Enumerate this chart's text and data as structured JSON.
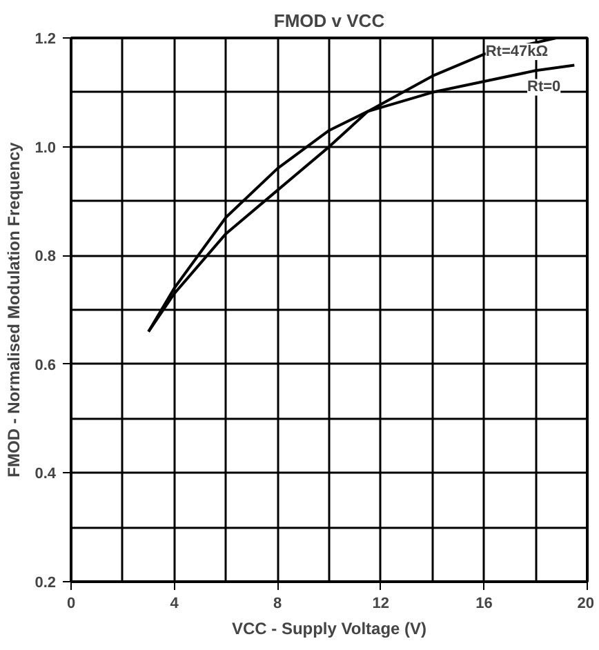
{
  "chart_data": {
    "type": "line",
    "title": "FMOD v VCC",
    "xlabel": "VCC - Supply Voltage (V)",
    "ylabel": "FMOD - Normalised Modulation Frequency",
    "series": [
      {
        "name": "Rt=47kΩ",
        "color": "#000000",
        "x": [
          3,
          4,
          6,
          8,
          10,
          11.5,
          14,
          16,
          18.8
        ],
        "values": [
          0.66,
          0.73,
          0.84,
          0.92,
          1.0,
          1.065,
          1.13,
          1.17,
          1.2
        ]
      },
      {
        "name": "Rt=0",
        "color": "#000000",
        "x": [
          3,
          4,
          6,
          8,
          10,
          11.5,
          14,
          16,
          18,
          19.5
        ],
        "values": [
          0.66,
          0.74,
          0.87,
          0.96,
          1.03,
          1.065,
          1.1,
          1.12,
          1.14,
          1.15
        ]
      }
    ],
    "xlim": [
      0,
      20
    ],
    "xticks": [
      0,
      4,
      8,
      12,
      16,
      20
    ],
    "ylim": [
      0.2,
      1.2
    ],
    "yticks": [
      {
        "value": 0.2,
        "label": "0.2"
      },
      {
        "value": 0.4,
        "label": "0.4"
      },
      {
        "value": 0.6,
        "label": "0.6"
      },
      {
        "value": 0.8,
        "label": "0.8"
      },
      {
        "value": 1.0,
        "label": "1.0"
      },
      {
        "value": 1.2,
        "label": "1.2"
      }
    ],
    "grid": true,
    "legend": false,
    "line_style": "solid",
    "marker": "none"
  }
}
